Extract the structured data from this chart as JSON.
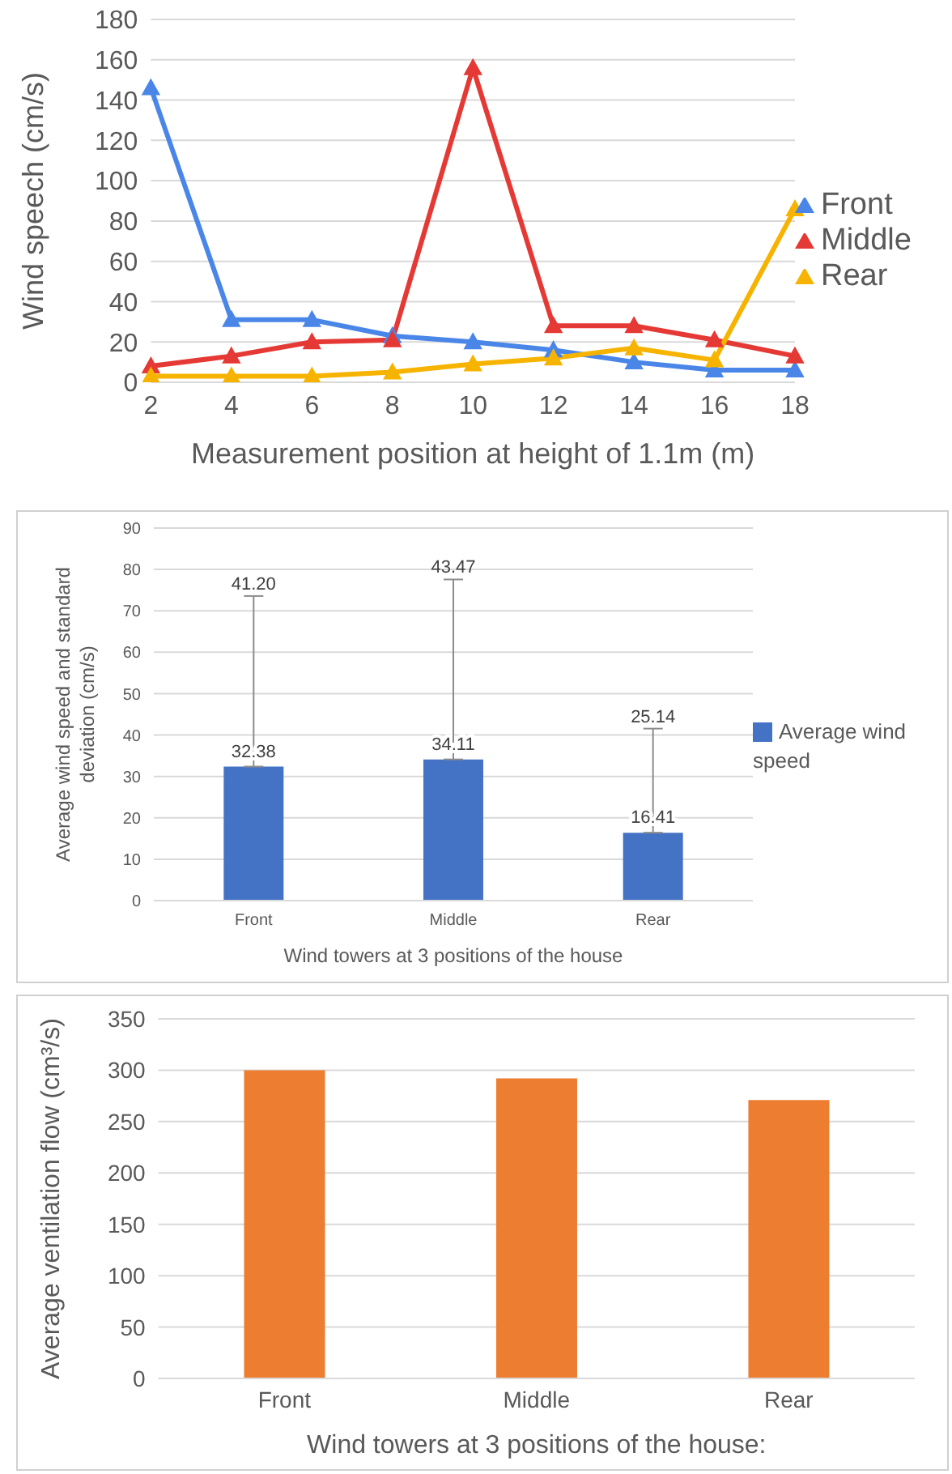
{
  "chart_data": [
    {
      "type": "line",
      "categories": [
        "2",
        "4",
        "6",
        "8",
        "10",
        "12",
        "14",
        "16",
        "18"
      ],
      "xlabel": "Measurement position at height of  1.1m (m)",
      "ylabel": "Wind speech (cm/s)",
      "ylim": [
        0,
        180
      ],
      "yticks": [
        0,
        20,
        40,
        60,
        80,
        100,
        120,
        140,
        160,
        180
      ],
      "grid": "y",
      "legend": "right",
      "marker": "triangle",
      "series": [
        {
          "name": "Front",
          "color": "#4a86e8",
          "values": [
            146,
            31,
            31,
            23,
            20,
            16,
            10,
            6,
            6
          ]
        },
        {
          "name": "Middle",
          "color": "#e53935",
          "values": [
            8,
            13,
            20,
            21,
            156,
            28,
            28,
            21,
            13
          ]
        },
        {
          "name": "Rear",
          "color": "#f6b400",
          "values": [
            3,
            3,
            3,
            5,
            9,
            12,
            17,
            11,
            86
          ]
        }
      ]
    },
    {
      "type": "bar",
      "categories": [
        "Front",
        "Middle",
        "Rear"
      ],
      "xlabel": "Wind towers at 3 positions of the house",
      "ylabel": "Average wind speed and standard deviation (cm/s)",
      "ylim": [
        0,
        90
      ],
      "yticks": [
        0,
        10,
        20,
        30,
        40,
        50,
        60,
        70,
        80,
        90
      ],
      "grid": "y",
      "legend": "right",
      "data_labels": true,
      "series": [
        {
          "name": "Average wind speed",
          "color": "#4472c4",
          "values": [
            32.38,
            34.11,
            16.41
          ],
          "errors": [
            [
              32.38,
              73.58
            ],
            [
              34.11,
              77.58
            ],
            [
              16.41,
              41.55
            ]
          ]
        }
      ],
      "annotations": [
        {
          "text": "41.20",
          "x": "Front",
          "y": 73.58
        },
        {
          "text": "43.47",
          "x": "Middle",
          "y": 77.58
        },
        {
          "text": "25.14",
          "x": "Rear",
          "y": 41.55
        }
      ]
    },
    {
      "type": "bar",
      "categories": [
        "Front",
        "Middle",
        "Rear"
      ],
      "xlabel": "Wind towers at 3 positions of the house:",
      "ylabel": "Average ventilation flow (cm³/s)",
      "ylim": [
        0,
        350
      ],
      "yticks": [
        0,
        50,
        100,
        150,
        200,
        250,
        300,
        350
      ],
      "grid": "y",
      "series": [
        {
          "color": "#ed7d31",
          "values": [
            300,
            292,
            271
          ]
        }
      ]
    }
  ]
}
